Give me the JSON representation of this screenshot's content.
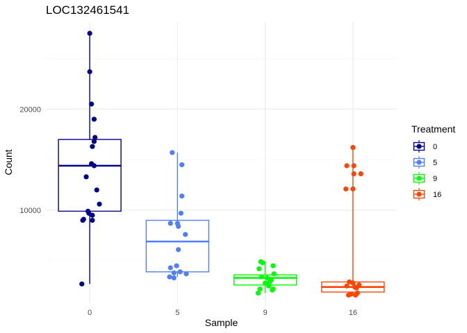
{
  "chart_data": {
    "type": "boxplot",
    "title": "LOC132461541",
    "xlabel": "Sample",
    "ylabel": "Count",
    "categories": [
      "0",
      "5",
      "9",
      "16"
    ],
    "y_ticks": [
      10000,
      20000
    ],
    "y_tick_labels": [
      "10000",
      "20000"
    ],
    "ylim": [
      800,
      28600
    ],
    "grid": true,
    "legend": {
      "title": "Treatment",
      "placement": "right",
      "entries": [
        "0",
        "5",
        "9",
        "16"
      ]
    },
    "series": [
      {
        "name": "0",
        "color": "#00008B",
        "category": "0",
        "box": {
          "q1": 9900,
          "median": 14400,
          "q3": 17000,
          "whisker_low": 2700,
          "whisker_high": 27500
        },
        "points": [
          {
            "dx": 0.0,
            "y": 27500
          },
          {
            "dx": 0.0,
            "y": 23700
          },
          {
            "dx": 0.02,
            "y": 20500
          },
          {
            "dx": 0.05,
            "y": 19000
          },
          {
            "dx": 0.06,
            "y": 17200
          },
          {
            "dx": 0.05,
            "y": 16800
          },
          {
            "dx": 0.03,
            "y": 16300
          },
          {
            "dx": 0.02,
            "y": 14600
          },
          {
            "dx": 0.05,
            "y": 14400
          },
          {
            "dx": -0.04,
            "y": 13300
          },
          {
            "dx": 0.08,
            "y": 12000
          },
          {
            "dx": -0.02,
            "y": 9900
          },
          {
            "dx": -0.01,
            "y": 9700
          },
          {
            "dx": 0.03,
            "y": 9500
          },
          {
            "dx": -0.07,
            "y": 9100
          },
          {
            "dx": -0.08,
            "y": 9000
          },
          {
            "dx": 0.03,
            "y": 9000
          },
          {
            "dx": 0.11,
            "y": 10600
          },
          {
            "dx": -0.09,
            "y": 2700
          }
        ]
      },
      {
        "name": "5",
        "color": "#4F7FFF",
        "category": "5",
        "box": {
          "q1": 3900,
          "median": 6900,
          "q3": 9000,
          "whisker_low": 3400,
          "whisker_high": 15700
        },
        "points": [
          {
            "dx": -0.06,
            "y": 15700
          },
          {
            "dx": 0.05,
            "y": 14500
          },
          {
            "dx": 0.05,
            "y": 11400
          },
          {
            "dx": 0.04,
            "y": 9700
          },
          {
            "dx": -0.08,
            "y": 8700
          },
          {
            "dx": 0.0,
            "y": 8700
          },
          {
            "dx": 0.01,
            "y": 8400
          },
          {
            "dx": 0.09,
            "y": 7600
          },
          {
            "dx": 0.01,
            "y": 6100
          },
          {
            "dx": -0.01,
            "y": 4500
          },
          {
            "dx": -0.08,
            "y": 4300
          },
          {
            "dx": -0.04,
            "y": 3800
          },
          {
            "dx": 0.03,
            "y": 3900
          },
          {
            "dx": 0.1,
            "y": 3700
          },
          {
            "dx": -0.09,
            "y": 3400
          },
          {
            "dx": -0.04,
            "y": 3300
          }
        ]
      },
      {
        "name": "9",
        "color": "#00FF00",
        "category": "9",
        "box": {
          "q1": 2600,
          "median": 3300,
          "q3": 3600,
          "whisker_low": 1800,
          "whisker_high": 4900
        },
        "points": [
          {
            "dx": -0.05,
            "y": 4900
          },
          {
            "dx": -0.03,
            "y": 4800
          },
          {
            "dx": 0.09,
            "y": 4500
          },
          {
            "dx": -0.07,
            "y": 4200
          },
          {
            "dx": 0.1,
            "y": 3700
          },
          {
            "dx": -0.04,
            "y": 3400
          },
          {
            "dx": 0.02,
            "y": 3300
          },
          {
            "dx": 0.07,
            "y": 3100
          },
          {
            "dx": 0.05,
            "y": 2900
          },
          {
            "dx": 0.0,
            "y": 2800
          },
          {
            "dx": 0.04,
            "y": 2500
          },
          {
            "dx": -0.06,
            "y": 2200
          },
          {
            "dx": 0.08,
            "y": 2100
          },
          {
            "dx": 0.09,
            "y": 2200
          },
          {
            "dx": -0.08,
            "y": 1800
          }
        ]
      },
      {
        "name": "16",
        "color": "#FF4500",
        "category": "16",
        "box": {
          "q1": 1900,
          "median": 2400,
          "q3": 2900,
          "whisker_low": 1600,
          "whisker_high": 16200
        },
        "points": [
          {
            "dx": 0.0,
            "y": 16200
          },
          {
            "dx": -0.07,
            "y": 14400
          },
          {
            "dx": 0.01,
            "y": 14400
          },
          {
            "dx": 0.01,
            "y": 13600
          },
          {
            "dx": 0.09,
            "y": 13600
          },
          {
            "dx": -0.08,
            "y": 12100
          },
          {
            "dx": 0.0,
            "y": 12100
          },
          {
            "dx": -0.04,
            "y": 2900
          },
          {
            "dx": 0.0,
            "y": 2800
          },
          {
            "dx": 0.07,
            "y": 2600
          },
          {
            "dx": -0.07,
            "y": 2500
          },
          {
            "dx": 0.02,
            "y": 2400
          },
          {
            "dx": 0.04,
            "y": 2300
          },
          {
            "dx": -0.02,
            "y": 1700
          },
          {
            "dx": 0.03,
            "y": 1600
          },
          {
            "dx": 0.05,
            "y": 1800
          },
          {
            "dx": -0.05,
            "y": 1600
          }
        ]
      }
    ]
  }
}
